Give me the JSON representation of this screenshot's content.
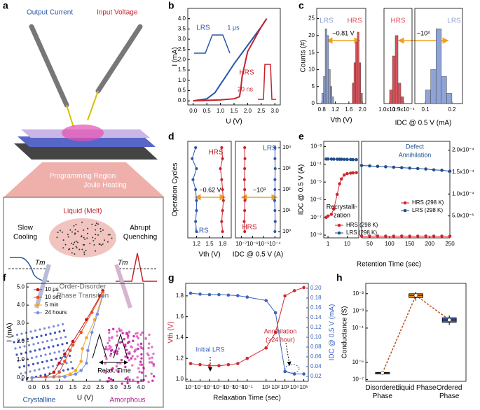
{
  "panels": [
    "a",
    "b",
    "c",
    "d",
    "e",
    "f",
    "g",
    "h"
  ],
  "panel_a": {
    "output_current": "Output Current",
    "input_voltage": "Input Voltage",
    "programming_region": "Programming Region",
    "joule_heating": "Joule Heating",
    "slow_cooling": [
      "Slow",
      "Cooling"
    ],
    "liquid": "Liquid (Melt)",
    "abrupt_quenching": [
      "Abrupt",
      "Quenching"
    ],
    "tm": [
      "Tm",
      "Tm"
    ],
    "transition": [
      "Order-Disorder",
      "Phase Transition"
    ],
    "crystalline": "Crystalline",
    "amorphous": "Amorphous"
  },
  "chart_data": [
    {
      "type": "line",
      "xlabel": "U (V)",
      "ylabel": "I (mA)",
      "xlim": [
        -0.2,
        3.2
      ],
      "xticks": [
        {
          "value": 0,
          "label": "0.0"
        },
        0.5,
        {
          "value": 1,
          "label": "1.0"
        },
        1.5,
        {
          "value": 2,
          "label": "2.0"
        },
        2.5,
        {
          "value": 3,
          "label": "3.0"
        }
      ],
      "ylim": [
        -0.2,
        4.5
      ],
      "yticks": [
        {
          "value": 0,
          "label": "0.0"
        },
        0.5,
        {
          "value": 1,
          "label": "1.0"
        },
        1.5,
        {
          "value": 2,
          "label": "2.0"
        },
        2.5,
        {
          "value": 3,
          "label": "3.0"
        },
        3.5,
        {
          "value": 4,
          "label": "4.0"
        }
      ],
      "series": [
        {
          "name": "LRS",
          "color": "#2a56a8",
          "x": [
            0,
            0.5,
            0.8,
            1.0,
            1.2,
            1.5,
            2.0,
            2.5,
            2.7
          ],
          "values": [
            0,
            0.1,
            0.4,
            0.8,
            1.2,
            1.8,
            2.7,
            3.6,
            4.0
          ]
        },
        {
          "name": "HRS",
          "color": "#c8202a",
          "x": [
            0,
            1.0,
            1.5,
            1.7,
            1.75,
            1.8,
            2.0,
            2.5,
            2.7
          ],
          "values": [
            0,
            0.05,
            0.1,
            0.2,
            0.6,
            1.2,
            2.4,
            3.6,
            4.0
          ]
        }
      ],
      "annotations": [
        "1 μs",
        "20 ns"
      ]
    },
    {
      "type": "histogram",
      "xlabel": "Vth (V)",
      "ylabel": "Counts (#)",
      "xlim": [
        0.65,
        2.1
      ],
      "xticks": [
        0.8,
        1.2,
        1.6,
        {
          "value": 2,
          "label": "2.0"
        }
      ],
      "ylim": [
        0,
        28
      ],
      "yticks": [
        0,
        5,
        10,
        15,
        20,
        25
      ],
      "series": [
        {
          "name": "LRS",
          "color": "#8fa3d6",
          "bins": [
            0.8,
            0.85,
            0.9,
            0.95,
            1.0,
            1.05,
            1.1,
            1.15
          ],
          "values": [
            3,
            8,
            22,
            20,
            10,
            5,
            2
          ]
        },
        {
          "name": "HRS",
          "color": "#d9545c",
          "bins": [
            1.7,
            1.75,
            1.8,
            1.85,
            1.9,
            1.95,
            2.0
          ],
          "values": [
            6,
            12,
            18,
            21,
            12,
            3
          ]
        }
      ],
      "annotations": [
        "~0.81 V"
      ]
    },
    {
      "type": "histogram",
      "xlabel": "IDC @ 0.5 V (mA)",
      "xlim": [
        8e-05,
        0.00018
      ],
      "xticks": [
        {
          "value": 0.0001,
          "label": "1.0x10⁻⁴"
        },
        {
          "value": 0.00015,
          "label": "1.5x10⁻⁴"
        }
      ],
      "ylim": [
        0,
        28
      ],
      "series": [
        {
          "name": "HRS",
          "color": "#d9545c",
          "bins": [
            0.0001,
            0.00011,
            0.00012,
            0.00013,
            0.00014,
            0.00015
          ],
          "values": [
            4,
            14,
            20,
            6,
            2
          ]
        }
      ],
      "annotations": [
        "~10³"
      ]
    },
    {
      "type": "histogram",
      "xlim": [
        0.06,
        0.24
      ],
      "xticks": [
        0.1,
        0.2
      ],
      "ylim": [
        0,
        28
      ],
      "series": [
        {
          "name": "LRS",
          "color": "#8fa3d6",
          "bins": [
            0.1,
            0.12,
            0.14,
            0.16,
            0.18,
            0.2
          ],
          "values": [
            4,
            10,
            22,
            8,
            3
          ]
        }
      ]
    },
    {
      "type": "scatter",
      "xlabel": "Vth (V)",
      "ylabel": "Operation Cycles",
      "xlim": [
        1.0,
        2.0
      ],
      "xticks": [
        1.2,
        1.5,
        1.8
      ],
      "ylim": [
        0.5,
        20000
      ],
      "ylog": true,
      "series": [
        {
          "name": "HRS",
          "color": "#c8202a",
          "x": [
            1.8,
            1.78,
            1.8,
            1.82,
            1.8,
            1.78,
            1.75,
            1.8,
            1.78
          ],
          "values": [
            1,
            3,
            10,
            30,
            100,
            300,
            1000,
            3000,
            10000
          ]
        },
        {
          "name": "LRS",
          "color": "#2a56a8",
          "x": [
            1.2,
            1.18,
            1.2,
            1.2,
            1.18,
            1.12,
            1.2,
            1.1,
            1.18
          ],
          "values": [
            1,
            3,
            10,
            30,
            100,
            300,
            1000,
            3000,
            10000
          ]
        }
      ],
      "annotations": [
        "~0.62 V"
      ]
    },
    {
      "type": "scatter",
      "xlabel": "IDC @ 0.5 V (A)",
      "xlim": [
        3e-08,
        0.0003
      ],
      "xlog": true,
      "xticks": [
        {
          "value": 1e-07,
          "label": "10⁻⁷"
        },
        {
          "value": 1e-06,
          "label": "10⁻⁶"
        },
        {
          "value": 1e-05,
          "label": "10⁻⁵"
        },
        {
          "value": 0.0001,
          "label": "10⁻⁴"
        }
      ],
      "ylim": [
        0.5,
        20000
      ],
      "ylog": true,
      "yticks": [
        {
          "value": 1,
          "label": "10⁰"
        },
        {
          "value": 10,
          "label": "10¹"
        },
        {
          "value": 100,
          "label": "10²"
        },
        {
          "value": 1000,
          "label": "10³"
        },
        {
          "value": 10000,
          "label": "10⁴"
        }
      ],
      "series": [
        {
          "name": "HRS",
          "color": "#c8202a",
          "x": [
            2e-07,
            1.8e-07,
            2e-07,
            2.1e-07,
            2e-07,
            1.9e-07,
            2e-07,
            2.1e-07,
            2e-07
          ],
          "values": [
            1,
            3,
            10,
            30,
            100,
            300,
            1000,
            3000,
            10000
          ]
        },
        {
          "name": "LRS",
          "color": "#2a56a8",
          "x": [
            0.0001,
            0.000105,
            0.0001,
            9.5e-05,
            0.0001,
            0.0001,
            0.000105,
            0.0001,
            0.0001
          ],
          "values": [
            1,
            3,
            10,
            30,
            100,
            300,
            1000,
            3000,
            10000
          ]
        }
      ],
      "annotations": [
        "~10³"
      ]
    },
    {
      "type": "line",
      "markers": true,
      "xlabel": "Retention Time (sec)",
      "ylabel": "IDC @ 0.5 V (A)",
      "xlim": [
        0.6,
        40
      ],
      "xlog": true,
      "xticks": [
        1,
        10
      ],
      "ylim": [
        7e-09,
        0.002
      ],
      "ylog": true,
      "yticks": [
        {
          "value": 1e-08,
          "label": "10⁻⁸"
        },
        {
          "value": 1e-07,
          "label": "10⁻⁷"
        },
        {
          "value": 1e-06,
          "label": "10⁻⁶"
        },
        {
          "value": 1e-05,
          "label": "10⁻⁵"
        },
        {
          "value": 0.0001,
          "label": "10⁻⁴"
        },
        {
          "value": 0.001,
          "label": "10⁻³"
        }
      ],
      "legend": "lower right",
      "series": [
        {
          "name": "HRS (298 K)",
          "color": "#d0282e",
          "x": [
            0.8,
            1,
            1.5,
            2,
            3,
            4,
            5,
            7,
            10,
            15,
            20,
            30
          ],
          "values": [
            1e-07,
            1.2e-07,
            1.5e-07,
            3e-07,
            2e-06,
            8e-06,
            1.5e-05,
            2.5e-05,
            3e-05,
            3.2e-05,
            3.3e-05,
            3.4e-05
          ]
        },
        {
          "name": "LRS (298 K)",
          "color": "#1f4e8c",
          "x": [
            0.8,
            1,
            1.5,
            2,
            3,
            4,
            5,
            7,
            10,
            15,
            20,
            30
          ],
          "values": [
            0.0002,
            0.0002,
            0.000198,
            0.000197,
            0.000196,
            0.000195,
            0.000194,
            0.000192,
            0.00019,
            0.000188,
            0.000186,
            0.000184
          ]
        }
      ],
      "annotations": [
        "Recrystalli-",
        "zation"
      ]
    },
    {
      "type": "line",
      "markers": true,
      "xlim": [
        30,
        250
      ],
      "xticks": [
        50,
        100,
        150,
        200,
        250
      ],
      "ylim": [
        0,
        0.00022
      ],
      "yticks": [
        {
          "value": 5e-05,
          "label": "5.0x10⁻⁵"
        },
        {
          "value": 0.0001,
          "label": "1.0x10⁻⁴"
        },
        {
          "value": 0.00015,
          "label": "1.5x10⁻⁴"
        },
        {
          "value": 0.0002,
          "label": "2.0x10⁻⁴"
        }
      ],
      "legend": "lower right",
      "series": [
        {
          "name": "HRS (298 K)",
          "color": "#d0282e",
          "x": [
            30,
            50,
            70,
            90,
            110,
            130,
            150,
            170,
            190,
            210,
            230,
            250
          ],
          "values": [
            4e-06,
            4e-06,
            4.1e-06,
            4e-06,
            4e-06,
            4.1e-06,
            4e-06,
            4e-06,
            4.1e-06,
            4e-06,
            4e-06,
            4e-06
          ]
        },
        {
          "name": "LRS (298 K)",
          "color": "#1f4e8c",
          "x": [
            30,
            50,
            70,
            90,
            110,
            130,
            150,
            170,
            190,
            210,
            230,
            250
          ],
          "values": [
            0.000165,
            0.000164,
            0.000163,
            0.000162,
            0.000161,
            0.00016,
            0.000159,
            0.000158,
            0.000157,
            0.000155,
            0.000154,
            0.000152
          ]
        }
      ],
      "annotations": [
        "Defect",
        "Annihilation"
      ]
    },
    {
      "type": "line",
      "markers": true,
      "xlabel": "U (V)",
      "ylabel": "I (mA)",
      "xlim": [
        -0.2,
        4.1
      ],
      "xticks": [
        {
          "value": 0,
          "label": "0.0"
        },
        0.5,
        {
          "value": 1,
          "label": "1.0"
        },
        1.5,
        {
          "value": 2,
          "label": "2.0"
        },
        2.5,
        {
          "value": 3,
          "label": "3.0"
        },
        3.5,
        {
          "value": 4,
          "label": "4.0"
        }
      ],
      "ylim": [
        -0.2,
        5.2
      ],
      "yticks": [
        {
          "value": 0,
          "label": "0.0"
        },
        {
          "value": 1,
          "label": "1.0"
        },
        {
          "value": 2,
          "label": "2.0"
        },
        {
          "value": 3,
          "label": "3.0"
        },
        {
          "value": 4,
          "label": "4.0"
        },
        {
          "value": 5,
          "label": "5.0"
        }
      ],
      "legend": "upper left",
      "series": [
        {
          "name": "10 μs",
          "color": "#c0141c",
          "x": [
            0,
            0.5,
            0.8,
            1.0,
            1.2,
            1.5,
            2.0,
            2.5,
            2.6
          ],
          "values": [
            0,
            0.05,
            0.3,
            0.8,
            1.3,
            2.0,
            3.2,
            4.5,
            4.8
          ]
        },
        {
          "name": "10 sec",
          "color": "#e8501e",
          "x": [
            0,
            0.8,
            1.0,
            1.2,
            1.4,
            1.5,
            1.8,
            2.2,
            2.6
          ],
          "values": [
            0,
            0.05,
            0.3,
            0.9,
            1.5,
            1.8,
            2.5,
            3.6,
            4.7
          ]
        },
        {
          "name": "5 min",
          "color": "#f5a623",
          "x": [
            0,
            1.0,
            1.4,
            1.6,
            1.8,
            1.85,
            2.0,
            2.3,
            2.6
          ],
          "values": [
            0,
            0.05,
            0.2,
            0.4,
            0.9,
            1.6,
            2.2,
            3.2,
            4.6
          ]
        },
        {
          "name": "24 hours",
          "color": "#7b8ee0",
          "x": [
            0,
            1.2,
            1.6,
            1.8,
            2.0,
            2.05,
            2.2,
            2.4,
            2.6
          ],
          "values": [
            0,
            0.05,
            0.2,
            0.4,
            0.8,
            1.5,
            2.5,
            3.5,
            4.5
          ]
        }
      ],
      "annotations": [
        "Relax. Time"
      ]
    },
    {
      "type": "line",
      "markers": true,
      "xlabel": "Relaxation Time (sec)",
      "ylabel": "Vth (V)",
      "y2label": "IDC @ 0.5 V (mA)",
      "xlim": [
        3e-08,
        300000
      ],
      "xlog": true,
      "xticks": [
        {
          "value": 1e-07,
          "label": "10⁻⁷"
        },
        {
          "value": 1e-06,
          "label": "10⁻⁶"
        },
        {
          "value": 1e-05,
          "label": "10⁻⁵"
        },
        {
          "value": 0.0001,
          "label": "10⁻⁴"
        },
        {
          "value": 0.001,
          "label": "10⁻³"
        },
        {
          "value": 0.01,
          "label": "10⁻²"
        },
        {
          "value": 0.1,
          "label": "10⁻¹"
        },
        {
          "value": 10,
          "label": "10¹"
        },
        {
          "value": 100,
          "label": "10²"
        },
        {
          "value": 1000,
          "label": "10³"
        },
        {
          "value": 10000,
          "label": "10⁴"
        },
        {
          "value": 100000,
          "label": "10⁵"
        }
      ],
      "ylim": [
        0.98,
        1.92
      ],
      "yticks": [
        {
          "value": 1,
          "label": "1.0"
        },
        1.2,
        1.4,
        1.6,
        1.8
      ],
      "y2lim": [
        0.01,
        0.21
      ],
      "y2ticks": [
        0.02,
        0.04,
        0.06,
        0.08,
        {
          "value": 0.1,
          "label": "0.10"
        },
        0.12,
        0.14,
        0.16,
        0.18,
        {
          "value": 0.2,
          "label": "0.20"
        }
      ],
      "series": [
        {
          "name": "Vth",
          "color": "#d0282e",
          "x": [
            1e-07,
            1e-06,
            1e-05,
            0.0001,
            0.001,
            0.01,
            0.1,
            10,
            100,
            1000,
            10000,
            100000
          ],
          "values": [
            1.15,
            1.14,
            1.13,
            1.13,
            1.14,
            1.15,
            1.2,
            1.3,
            1.45,
            1.8,
            1.85,
            1.88
          ]
        },
        {
          "name": "IDC",
          "color": "#3a62c0",
          "axis": "y2",
          "x": [
            1e-07,
            1e-06,
            1e-05,
            0.0001,
            0.001,
            0.01,
            0.1,
            10,
            100,
            1000,
            10000,
            100000
          ],
          "values": [
            0.19,
            0.188,
            0.187,
            0.187,
            0.186,
            0.185,
            0.182,
            0.175,
            0.15,
            0.03,
            0.025,
            0.025
          ]
        }
      ],
      "annotations": [
        "Initial LRS",
        "Annihilation",
        "(>24 hour)"
      ]
    },
    {
      "type": "box",
      "ylabel": "Conductance (S)",
      "categories": [
        "Disordered Phase",
        "Liquid Phase",
        "Ordered Phase"
      ],
      "ylim": [
        8e-08,
        0.04
      ],
      "ylog": true,
      "yticks": [
        {
          "value": 1e-07,
          "label": "10⁻⁷"
        },
        {
          "value": 1e-06,
          "label": "10⁻⁶"
        },
        {
          "value": 0.0001,
          "label": "10⁻⁴"
        },
        {
          "value": 0.001,
          "label": "10⁻³"
        },
        {
          "value": 0.01,
          "label": "10⁻²"
        }
      ],
      "line_color": "#b5501e",
      "boxes": [
        {
          "color": "#d0282e",
          "min": 2.3e-07,
          "q1": 2.4e-07,
          "median": 2.5e-07,
          "q3": 2.6e-07,
          "max": 2.7e-07
        },
        {
          "color": "#f08c1e",
          "min": 0.004,
          "q1": 0.006,
          "median": 0.008,
          "q3": 0.01,
          "max": 0.013
        },
        {
          "color": "#3a5cb0",
          "min": 0.00015,
          "q1": 0.00022,
          "median": 0.0003,
          "q3": 0.0004,
          "max": 0.00055
        }
      ]
    }
  ]
}
